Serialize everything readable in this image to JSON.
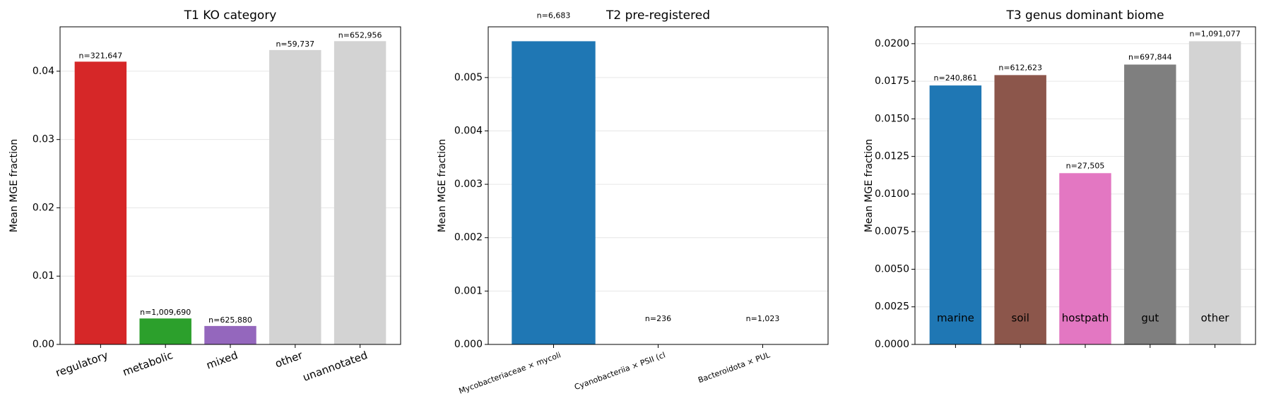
{
  "chart_data": [
    {
      "type": "bar",
      "title": "T1 KO category",
      "ylabel": "Mean MGE fraction",
      "categories": [
        "regulatory",
        "metabolic",
        "mixed",
        "other",
        "unannotated"
      ],
      "values": [
        0.0414,
        0.0038,
        0.0027,
        0.0431,
        0.0444
      ],
      "colors": [
        "#d62728",
        "#2ca02c",
        "#9467bd",
        "#d3d3d3",
        "#d3d3d3"
      ],
      "annotations": [
        "n=321,647",
        "n=1,009,690",
        "n=625,880",
        "n=59,737",
        "n=652,956"
      ],
      "ylim": [
        0,
        0.0465
      ],
      "yticks": [
        {
          "value": 0,
          "label": "0.00"
        },
        {
          "value": 0.01,
          "label": "0.01"
        },
        {
          "value": 0.02,
          "label": "0.02"
        },
        {
          "value": 0.03,
          "label": "0.03"
        },
        {
          "value": 0.04,
          "label": "0.04"
        }
      ],
      "grid": true
    },
    {
      "type": "bar",
      "title": "T2 pre-registered",
      "ylabel": "Mean MGE fraction",
      "categories": [
        "Mycobacteriaceae × mycoli",
        "Cyanobacteriia × PSII (cl",
        "Bacteroidota × PUL"
      ],
      "values": [
        0.00568,
        0,
        0
      ],
      "colors": [
        "#1f77b4",
        "#1f77b4",
        "#1f77b4"
      ],
      "annotations": [
        "n=6,683",
        "n=236",
        "n=1,023"
      ],
      "ylim": [
        0,
        0.00595
      ],
      "yticks": [
        {
          "value": 0,
          "label": "0.000"
        },
        {
          "value": 0.001,
          "label": "0.001"
        },
        {
          "value": 0.002,
          "label": "0.002"
        },
        {
          "value": 0.003,
          "label": "0.003"
        },
        {
          "value": 0.004,
          "label": "0.004"
        },
        {
          "value": 0.005,
          "label": "0.005"
        }
      ],
      "grid": true
    },
    {
      "type": "bar",
      "title": "T3 genus dominant biome",
      "ylabel": "Mean MGE fraction",
      "categories": [
        "marine",
        "soil",
        "hostpath",
        "gut",
        "other"
      ],
      "values": [
        0.01722,
        0.01791,
        0.01139,
        0.01861,
        0.02016
      ],
      "colors": [
        "#1f77b4",
        "#8c564b",
        "#e377c2",
        "#7f7f7f",
        "#d3d3d3"
      ],
      "annotations": [
        "n=240,861",
        "n=612,623",
        "n=27,505",
        "n=697,844",
        "n=1,091,077"
      ],
      "ylim": [
        0,
        0.02112
      ],
      "yticks": [
        {
          "value": 0,
          "label": "0.0000"
        },
        {
          "value": 0.0025,
          "label": "0.0025"
        },
        {
          "value": 0.005,
          "label": "0.0050"
        },
        {
          "value": 0.0075,
          "label": "0.0075"
        },
        {
          "value": 0.01,
          "label": "0.0100"
        },
        {
          "value": 0.0125,
          "label": "0.0125"
        },
        {
          "value": 0.015,
          "label": "0.0150"
        },
        {
          "value": 0.0175,
          "label": "0.0175"
        },
        {
          "value": 0.02,
          "label": "0.0200"
        }
      ],
      "grid": true
    }
  ]
}
